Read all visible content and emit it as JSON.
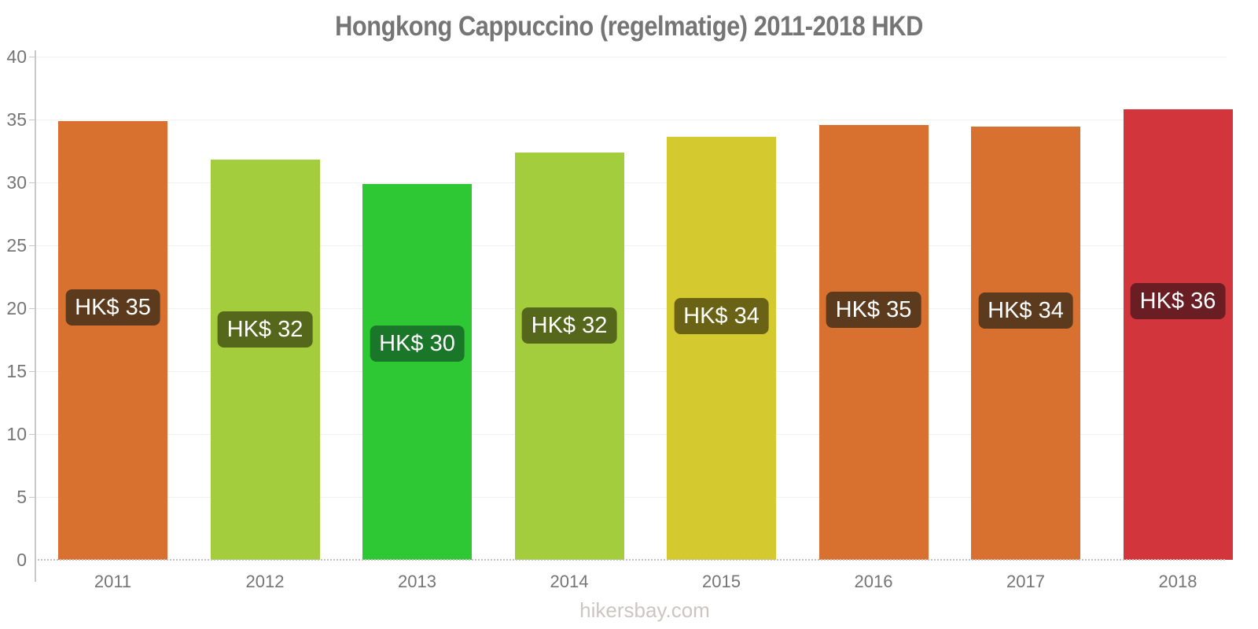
{
  "title": "Hongkong Cappuccino (regelmatige) 2011-2018 HKD",
  "watermark": "hikersbay.com",
  "chart_data": {
    "type": "bar",
    "title": "Hongkong Cappuccino (regelmatige) 2011-2018 HKD",
    "categories": [
      "2011",
      "2012",
      "2013",
      "2014",
      "2015",
      "2016",
      "2017",
      "2018"
    ],
    "values": [
      34.9,
      31.8,
      29.9,
      32.4,
      33.65,
      34.55,
      34.45,
      35.8
    ],
    "bar_labels": [
      "HK$ 35",
      "HK$ 32",
      "HK$ 30",
      "HK$ 32",
      "HK$ 34",
      "HK$ 35",
      "HK$ 34",
      "HK$ 36"
    ],
    "bar_colors": [
      "#D8702F",
      "#A3CD3C",
      "#2EC834",
      "#A3CD3C",
      "#D5C930",
      "#D8702F",
      "#D8702F",
      "#D3353C"
    ],
    "bar_label_bg": [
      "#5C3A1E",
      "#55671B",
      "#1A7628",
      "#55671B",
      "#6A6315",
      "#5C3A1E",
      "#5C3A1E",
      "#6B1D24"
    ],
    "xlabel": "",
    "ylabel": "",
    "ylim": [
      0,
      40
    ],
    "yticks": [
      0,
      5,
      10,
      15,
      20,
      25,
      30,
      35,
      40
    ],
    "grid": true,
    "legend_position": "none"
  },
  "colors": {
    "background": "#ffffff",
    "title": "#757575",
    "tick_label": "#757575",
    "gridline": "#f1f1f1",
    "axis_line": "#c9c9c9",
    "baseline_dots": "#c6c1bd",
    "value_label_text": "#ffffff",
    "watermark": "#ccc5c0"
  }
}
